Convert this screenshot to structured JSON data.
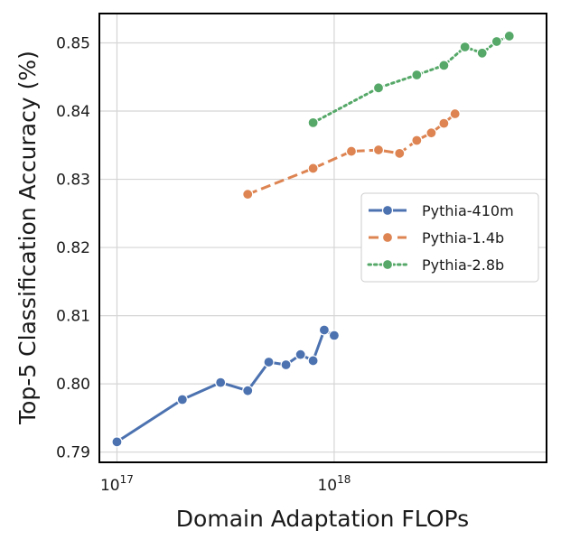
{
  "chart_data": {
    "type": "line",
    "xlabel": "Domain Adaptation FLOPs",
    "ylabel": "Top-5 Classification Accuracy (%)",
    "x_scale": "log",
    "xlim": [
      8.3e+16,
      9.5e+18
    ],
    "ylim": [
      0.7885,
      0.8543
    ],
    "x_ticks": [
      {
        "value": 1e+17,
        "base": "10",
        "exp": "17"
      },
      {
        "value": 1e+18,
        "base": "10",
        "exp": "18"
      }
    ],
    "y_ticks": [
      {
        "value": 0.79,
        "label": "0.79"
      },
      {
        "value": 0.8,
        "label": "0.80"
      },
      {
        "value": 0.81,
        "label": "0.81"
      },
      {
        "value": 0.82,
        "label": "0.82"
      },
      {
        "value": 0.83,
        "label": "0.83"
      },
      {
        "value": 0.84,
        "label": "0.84"
      },
      {
        "value": 0.85,
        "label": "0.85"
      }
    ],
    "grid": true,
    "legend_position": "center-right",
    "series": [
      {
        "name": "Pythia-410m",
        "color": "#4c72b0",
        "dash": "solid",
        "x": [
          1e+17,
          2e+17,
          3e+17,
          4e+17,
          5e+17,
          6e+17,
          7e+17,
          8e+17,
          9e+17,
          1e+18
        ],
        "y": [
          0.7915,
          0.7977,
          0.8002,
          0.799,
          0.8032,
          0.8028,
          0.8043,
          0.8034,
          0.8079,
          0.8071
        ]
      },
      {
        "name": "Pythia-1.4b",
        "color": "#dd8452",
        "dash": "dashed",
        "x": [
          4e+17,
          8e+17,
          1.2e+18,
          1.6e+18,
          2e+18,
          2.4e+18,
          2.8e+18,
          3.2e+18,
          3.6e+18
        ],
        "y": [
          0.8278,
          0.8316,
          0.8341,
          0.8343,
          0.8338,
          0.8357,
          0.8368,
          0.8382,
          0.8396
        ]
      },
      {
        "name": "Pythia-2.8b",
        "color": "#55a868",
        "dash": "dotted",
        "x": [
          8e+17,
          1.6e+18,
          2.4e+18,
          3.2e+18,
          4e+18,
          4.8e+18,
          5.6e+18,
          6.4e+18
        ],
        "y": [
          0.8383,
          0.8434,
          0.8453,
          0.8467,
          0.8494,
          0.8485,
          0.8502,
          0.851
        ]
      }
    ]
  }
}
